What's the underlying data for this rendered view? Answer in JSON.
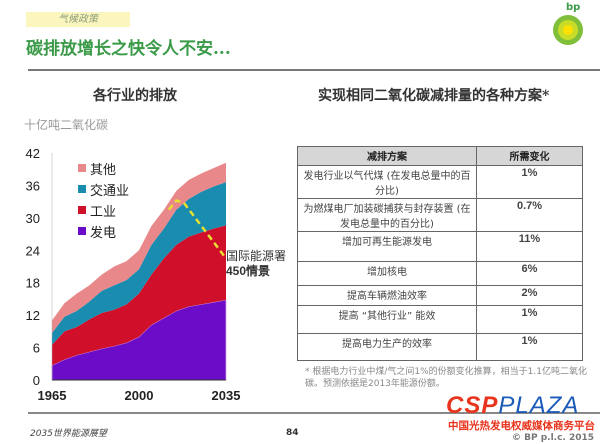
{
  "header": {
    "section_tag": "气候政策",
    "title": "碳排放增长之快令人不安...",
    "logo_text": "bp"
  },
  "left": {
    "subtitle": "各行业的排放",
    "unit": "十亿吨二氧化碳"
  },
  "right": {
    "subtitle": "实现相同二氧化碳减排量的各种方案*"
  },
  "chart_data": {
    "type": "area",
    "title": "各行业的排放",
    "ylabel": "十亿吨二氧化碳",
    "xlabel": "",
    "x": [
      1965,
      1970,
      1975,
      1980,
      1985,
      1990,
      1995,
      2000,
      2005,
      2010,
      2015,
      2020,
      2025,
      2030,
      2035
    ],
    "xticks": [
      "1965",
      "2000",
      "2035"
    ],
    "yticks": [
      "0",
      "6",
      "12",
      "18",
      "24",
      "30",
      "36",
      "42"
    ],
    "ylim": [
      0,
      42
    ],
    "xlim": [
      1965,
      2035
    ],
    "stacked": true,
    "legend_position": "top-left",
    "series": [
      {
        "name": "发电",
        "color": "#6a0cc8",
        "values": [
          2.7,
          3.8,
          4.6,
          5.2,
          5.8,
          6.3,
          6.9,
          8.0,
          10.2,
          11.5,
          12.8,
          13.6,
          14.0,
          14.4,
          14.8
        ]
      },
      {
        "name": "工业",
        "color": "#d0102a",
        "values": [
          3.8,
          5.2,
          5.2,
          6.0,
          6.6,
          6.7,
          7.1,
          8.0,
          9.3,
          11.0,
          12.2,
          12.9,
          13.3,
          13.6,
          13.8
        ]
      },
      {
        "name": "交通业",
        "color": "#1a8cb0",
        "values": [
          2.2,
          2.7,
          3.0,
          3.3,
          4.1,
          4.5,
          4.5,
          4.5,
          5.5,
          5.5,
          6.5,
          7.0,
          7.5,
          7.8,
          8.0
        ]
      },
      {
        "name": "其他",
        "color": "#e8888a",
        "values": [
          2.3,
          2.5,
          3.2,
          3.0,
          3.0,
          3.5,
          3.5,
          3.5,
          3.5,
          3.5,
          3.5,
          3.5,
          3.4,
          3.4,
          3.6
        ]
      }
    ],
    "legend": [
      "其他",
      "交通业",
      "工业",
      "发电"
    ],
    "scenario": {
      "name": "国际能源署",
      "name2": "450情景",
      "color": "#e8e030",
      "x": [
        2012,
        2015,
        2018,
        2035
      ],
      "y": [
        31.5,
        33.2,
        32.8,
        22.5
      ]
    }
  },
  "table": {
    "headers": [
      "减排方案",
      "所需变化"
    ],
    "rows": [
      {
        "option": "发电行业以气代煤 (在发电总量中的百分比)",
        "change": "1%"
      },
      {
        "option": "为燃煤电厂加装碳捕获与封存装置 (在发电总量中的百分比)",
        "change": "0.7%"
      },
      {
        "option": "增加可再生能源发电",
        "change": "11%"
      },
      {
        "option": "增加核电",
        "change": "6%"
      },
      {
        "option": "提高车辆燃油效率",
        "change": "2%"
      },
      {
        "option": "提高 “其他行业” 能效",
        "change": "1%"
      },
      {
        "option": "提高电力生产的效率",
        "change": "1%"
      }
    ]
  },
  "footnote": "* 根据电力行业中煤/气之间1%的份额变化推算，相当于1.1亿吨二氧化碳。预测依据是2013年能源份额。",
  "footer": {
    "left": "2035世界能源展望",
    "page": "84",
    "copyright": "© BP p.l.c. 2015"
  },
  "watermark": {
    "logo_a": "CSP",
    "logo_b": "PLAZA",
    "text": "中国光热发电权威媒体商务平台"
  }
}
